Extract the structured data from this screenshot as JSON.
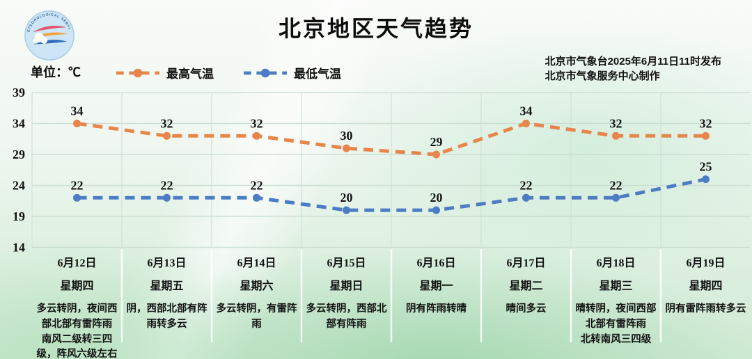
{
  "header": {
    "title": "北京地区天气趋势",
    "unit_label": "单位：℃",
    "publish_line1": "北京市气象台2025年6月11日11时发布",
    "publish_line2": "北京市气象服务中心制作",
    "logo_arc_text": "METEOROLOGICAL SERVICE"
  },
  "legend": {
    "items": [
      {
        "label": "最高气温",
        "color": "#e8854a"
      },
      {
        "label": "最低气温",
        "color": "#4d7cc5"
      }
    ]
  },
  "chart_data": {
    "type": "line",
    "title": "北京地区天气趋势",
    "unit": "℃",
    "ylim": [
      14,
      39
    ],
    "yticks": [
      39,
      34,
      29,
      24,
      19,
      14
    ],
    "grid": true,
    "legend_position": "top-left",
    "x": [
      "6月12日",
      "6月13日",
      "6月14日",
      "6月15日",
      "6月16日",
      "6月17日",
      "6月18日",
      "6月19日"
    ],
    "weekdays": [
      "星期四",
      "星期五",
      "星期六",
      "星期日",
      "星期一",
      "星期二",
      "星期三",
      "星期四"
    ],
    "series": [
      {
        "name": "最高气温",
        "color": "#e8854a",
        "values": [
          34,
          32,
          32,
          30,
          29,
          34,
          32,
          32
        ]
      },
      {
        "name": "最低气温",
        "color": "#4d7cc5",
        "values": [
          22,
          22,
          22,
          20,
          20,
          22,
          22,
          25
        ]
      }
    ],
    "weather": [
      "多云转阴，夜间西部北部有雷阵雨\n南风二级转三四级，阵风六级左右",
      "阴，西部北部有阵雨转多云",
      "多云转阴，有雷阵雨",
      "多云转阴，西部北部有阵雨",
      "阴有阵雨转晴",
      "晴间多云",
      "晴转阴，夜间西部北部有雷阵雨\n北转南风三四级",
      "阴有雷阵雨转多云"
    ]
  }
}
